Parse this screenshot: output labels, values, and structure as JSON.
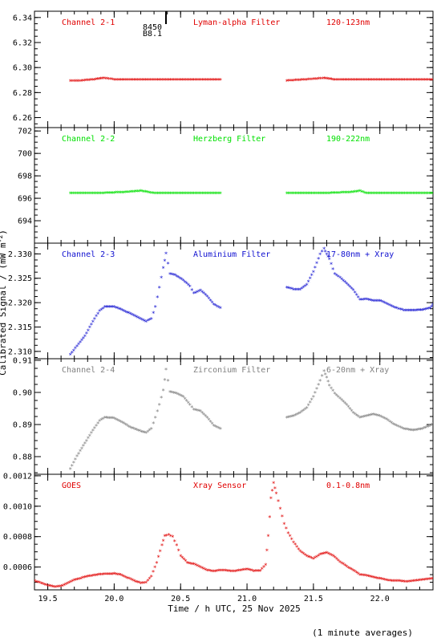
{
  "figure": {
    "xlabel": "Time / h UTC, 25 Nov 2025",
    "ylabel": "Calibrated Signal / (mW m",
    "ylabel_sup": "-2",
    "ylabel_close": ")",
    "footnote": "(1 minute averages)",
    "marker": {
      "line1": "8450",
      "line2": "B8.1",
      "x": 20.39
    },
    "xlim": [
      19.4,
      22.4
    ],
    "xticks": [
      19.5,
      20.0,
      20.5,
      21.0,
      21.5,
      22.0
    ],
    "xtick_labels": [
      "19.5",
      "20.0",
      "20.5",
      "21.0",
      "21.5",
      "22.0"
    ]
  },
  "chart_data": [
    {
      "type": "scatter",
      "panel": "Channel 2-1",
      "labels": [
        "Channel 2-1",
        "Lyman-alpha Filter",
        "120-123nm"
      ],
      "color": "#e00000",
      "marker": "asterisk",
      "ylim": [
        6.252,
        6.345
      ],
      "yticks": [
        6.26,
        6.28,
        6.3,
        6.32,
        6.34
      ],
      "ytick_labels": [
        "6.26",
        "6.28",
        "6.30",
        "6.32",
        "6.34"
      ],
      "series": [
        {
          "points": [
            [
              19.67,
              6.289
            ],
            [
              19.75,
              6.289
            ],
            [
              19.85,
              6.29
            ],
            [
              19.92,
              6.291
            ],
            [
              20.0,
              6.29
            ],
            [
              20.2,
              6.29
            ],
            [
              20.5,
              6.29
            ],
            [
              20.8,
              6.29
            ]
          ]
        },
        {
          "points": [
            [
              21.3,
              6.289
            ],
            [
              21.45,
              6.29
            ],
            [
              21.58,
              6.291
            ],
            [
              21.65,
              6.29
            ],
            [
              21.8,
              6.29
            ],
            [
              22.0,
              6.29
            ],
            [
              22.4,
              6.29
            ]
          ]
        }
      ]
    },
    {
      "type": "scatter",
      "panel": "Channel 2-2",
      "labels": [
        "Channel 2-2",
        "Herzberg Filter",
        "190-222nm"
      ],
      "color": "#00e000",
      "marker": "asterisk",
      "ylim": [
        692.0,
        702.3
      ],
      "yticks": [
        694,
        696,
        698,
        700,
        702
      ],
      "ytick_labels": [
        "694",
        "696",
        "698",
        "700",
        "702"
      ],
      "series": [
        {
          "points": [
            [
              19.67,
              696.4
            ],
            [
              19.9,
              696.4
            ],
            [
              20.1,
              696.5
            ],
            [
              20.2,
              696.6
            ],
            [
              20.3,
              696.4
            ],
            [
              20.5,
              696.4
            ],
            [
              20.8,
              696.4
            ]
          ]
        },
        {
          "points": [
            [
              21.3,
              696.4
            ],
            [
              21.6,
              696.4
            ],
            [
              21.8,
              696.5
            ],
            [
              21.85,
              696.6
            ],
            [
              21.9,
              696.4
            ],
            [
              22.1,
              696.4
            ],
            [
              22.4,
              696.4
            ]
          ]
        }
      ]
    },
    {
      "type": "scatter",
      "panel": "Channel 2-3",
      "labels": [
        "Channel 2-3",
        "Aluminium Filter",
        "17-80nm + Xray"
      ],
      "color": "#1010d0",
      "marker": "asterisk",
      "ylim": [
        2.3085,
        2.3322
      ],
      "yticks": [
        2.31,
        2.315,
        2.32,
        2.325,
        2.33
      ],
      "ytick_labels": [
        "2.310",
        "2.315",
        "2.320",
        "2.325",
        "2.330"
      ],
      "series": [
        {
          "points": [
            [
              19.67,
              2.3092
            ],
            [
              19.72,
              2.311
            ],
            [
              19.78,
              2.313
            ],
            [
              19.84,
              2.316
            ],
            [
              19.89,
              2.3182
            ],
            [
              19.93,
              2.319
            ],
            [
              20.0,
              2.319
            ],
            [
              20.06,
              2.3184
            ],
            [
              20.12,
              2.3176
            ],
            [
              20.18,
              2.3168
            ],
            [
              20.24,
              2.316
            ],
            [
              20.28,
              2.3166
            ],
            [
              20.31,
              2.319
            ],
            [
              20.34,
              2.323
            ],
            [
              20.37,
              2.327
            ],
            [
              20.39,
              2.33
            ],
            [
              20.42,
              2.3258
            ],
            [
              20.46,
              2.3255
            ],
            [
              20.52,
              2.3245
            ],
            [
              20.57,
              2.3232
            ],
            [
              20.6,
              2.3218
            ],
            [
              20.65,
              2.3224
            ],
            [
              20.7,
              2.3212
            ],
            [
              20.75,
              2.3195
            ],
            [
              20.8,
              2.3188
            ]
          ]
        },
        {
          "points": [
            [
              21.3,
              2.323
            ],
            [
              21.35,
              2.3226
            ],
            [
              21.4,
              2.3226
            ],
            [
              21.45,
              2.3236
            ],
            [
              21.5,
              2.3262
            ],
            [
              21.55,
              2.3298
            ],
            [
              21.58,
              2.331
            ],
            [
              21.6,
              2.3298
            ],
            [
              21.62,
              2.3288
            ],
            [
              21.66,
              2.3258
            ],
            [
              21.7,
              2.325
            ],
            [
              21.75,
              2.3238
            ],
            [
              21.8,
              2.3225
            ],
            [
              21.85,
              2.3205
            ],
            [
              21.9,
              2.3206
            ],
            [
              21.95,
              2.3203
            ],
            [
              22.0,
              2.3203
            ],
            [
              22.05,
              2.3197
            ],
            [
              22.1,
              2.319
            ],
            [
              22.18,
              2.3183
            ],
            [
              22.25,
              2.3183
            ],
            [
              22.32,
              2.3184
            ],
            [
              22.38,
              2.3188
            ],
            [
              22.4,
              2.3195
            ]
          ]
        }
      ]
    },
    {
      "type": "scatter",
      "panel": "Channel 2-4",
      "labels": [
        "Channel 2-4",
        "Zirconium Filter",
        "6-20nm + Xray"
      ],
      "color": "#808080",
      "marker": "asterisk",
      "ylim": [
        0.8745,
        0.9105
      ],
      "yticks": [
        0.88,
        0.89,
        0.9,
        0.91
      ],
      "ytick_labels": [
        "0.88",
        "0.89",
        "0.90",
        "0.91"
      ],
      "series": [
        {
          "points": [
            [
              19.67,
              0.876
            ],
            [
              19.72,
              0.88
            ],
            [
              19.78,
              0.884
            ],
            [
              19.84,
              0.888
            ],
            [
              19.89,
              0.891
            ],
            [
              19.93,
              0.892
            ],
            [
              20.0,
              0.8918
            ],
            [
              20.06,
              0.8905
            ],
            [
              20.12,
              0.889
            ],
            [
              20.18,
              0.888
            ],
            [
              20.24,
              0.8872
            ],
            [
              20.28,
              0.8885
            ],
            [
              20.31,
              0.892
            ],
            [
              20.34,
              0.896
            ],
            [
              20.37,
              0.9005
            ],
            [
              20.39,
              0.907
            ],
            [
              20.42,
              0.9
            ],
            [
              20.47,
              0.8995
            ],
            [
              20.52,
              0.8985
            ],
            [
              20.57,
              0.896
            ],
            [
              20.6,
              0.8945
            ],
            [
              20.65,
              0.894
            ],
            [
              20.7,
              0.892
            ],
            [
              20.75,
              0.8895
            ],
            [
              20.8,
              0.8885
            ]
          ]
        },
        {
          "points": [
            [
              21.3,
              0.892
            ],
            [
              21.35,
              0.8925
            ],
            [
              21.4,
              0.8935
            ],
            [
              21.45,
              0.895
            ],
            [
              21.5,
              0.8985
            ],
            [
              21.55,
              0.9035
            ],
            [
              21.58,
              0.9065
            ],
            [
              21.6,
              0.9045
            ],
            [
              21.62,
              0.902
            ],
            [
              21.66,
              0.8995
            ],
            [
              21.7,
              0.898
            ],
            [
              21.75,
              0.896
            ],
            [
              21.8,
              0.8935
            ],
            [
              21.85,
              0.892
            ],
            [
              21.9,
              0.8925
            ],
            [
              21.95,
              0.893
            ],
            [
              22.0,
              0.8925
            ],
            [
              22.05,
              0.8915
            ],
            [
              22.1,
              0.89
            ],
            [
              22.18,
              0.8885
            ],
            [
              22.25,
              0.888
            ],
            [
              22.32,
              0.8885
            ],
            [
              22.38,
              0.8895
            ],
            [
              22.4,
              0.89
            ]
          ]
        }
      ]
    },
    {
      "type": "scatter",
      "panel": "GOES",
      "labels": [
        "GOES",
        "Xray Sensor",
        "0.1-0.8nm"
      ],
      "color": "#e00000",
      "marker": "asterisk",
      "ylim": [
        0.00045,
        0.00121
      ],
      "yticks": [
        0.0006,
        0.0008,
        0.001,
        0.0012
      ],
      "ytick_labels": [
        "0.0006",
        "0.0008",
        "0.0010",
        "0.0012"
      ],
      "series": [
        {
          "points": [
            [
              19.4,
              0.000505
            ],
            [
              19.45,
              0.00049
            ],
            [
              19.5,
              0.000475
            ],
            [
              19.55,
              0.000465
            ],
            [
              19.6,
              0.00047
            ],
            [
              19.65,
              0.00049
            ],
            [
              19.7,
              0.00051
            ],
            [
              19.8,
              0.000535
            ],
            [
              19.9,
              0.000548
            ],
            [
              20.0,
              0.000552
            ],
            [
              20.05,
              0.000545
            ],
            [
              20.1,
              0.000525
            ],
            [
              20.15,
              0.000505
            ],
            [
              20.2,
              0.00049
            ],
            [
              20.24,
              0.000495
            ],
            [
              20.28,
              0.000535
            ],
            [
              20.32,
              0.000625
            ],
            [
              20.36,
              0.00074
            ],
            [
              20.38,
              0.0008
            ],
            [
              20.41,
              0.000808
            ],
            [
              20.44,
              0.000795
            ],
            [
              20.47,
              0.00074
            ],
            [
              20.5,
              0.00067
            ],
            [
              20.55,
              0.000625
            ],
            [
              20.6,
              0.000615
            ],
            [
              20.65,
              0.000595
            ],
            [
              20.7,
              0.000575
            ],
            [
              20.75,
              0.000568
            ],
            [
              20.8,
              0.000575
            ],
            [
              20.85,
              0.000572
            ],
            [
              20.9,
              0.000568
            ],
            [
              20.95,
              0.000575
            ],
            [
              21.0,
              0.000582
            ],
            [
              21.05,
              0.00057
            ],
            [
              21.1,
              0.000572
            ],
            [
              21.14,
              0.00061
            ],
            [
              21.16,
              0.0008
            ],
            [
              21.18,
              0.00105
            ],
            [
              21.2,
              0.00115
            ],
            [
              21.22,
              0.00108
            ],
            [
              21.25,
              0.00098
            ],
            [
              21.28,
              0.00088
            ],
            [
              21.31,
              0.00082
            ],
            [
              21.35,
              0.00076
            ],
            [
              21.4,
              0.0007
            ],
            [
              21.45,
              0.00067
            ],
            [
              21.5,
              0.00065
            ],
            [
              21.55,
              0.00068
            ],
            [
              21.6,
              0.00069
            ],
            [
              21.65,
              0.00067
            ],
            [
              21.7,
              0.00063
            ],
            [
              21.75,
              0.0006
            ],
            [
              21.8,
              0.000575
            ],
            [
              21.85,
              0.000545
            ],
            [
              21.9,
              0.00054
            ],
            [
              21.95,
              0.00053
            ],
            [
              22.0,
              0.00052
            ],
            [
              22.05,
              0.00051
            ],
            [
              22.1,
              0.000505
            ],
            [
              22.15,
              0.000505
            ],
            [
              22.2,
              0.0005
            ],
            [
              22.25,
              0.000505
            ],
            [
              22.3,
              0.00051
            ],
            [
              22.35,
              0.000515
            ],
            [
              22.4,
              0.00052
            ]
          ]
        }
      ]
    }
  ]
}
